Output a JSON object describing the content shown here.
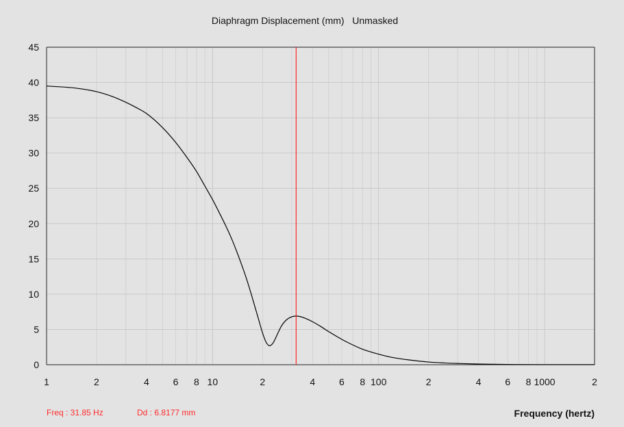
{
  "chart_data": {
    "type": "line",
    "title": "Diaphragm Displacement (mm)   Unmasked",
    "xlabel": "Frequency (hertz)",
    "ylabel": "",
    "x_scale": "log",
    "xlim": [
      1,
      2000
    ],
    "ylim": [
      0,
      45
    ],
    "grid": true,
    "y_ticks": [
      0,
      5,
      10,
      15,
      20,
      25,
      30,
      35,
      40,
      45
    ],
    "x_ticks": [
      {
        "value": 1,
        "label": "1"
      },
      {
        "value": 2,
        "label": "2"
      },
      {
        "value": 4,
        "label": "4"
      },
      {
        "value": 6,
        "label": "6"
      },
      {
        "value": 8,
        "label": "8"
      },
      {
        "value": 10,
        "label": "10"
      },
      {
        "value": 20,
        "label": "2"
      },
      {
        "value": 40,
        "label": "4"
      },
      {
        "value": 60,
        "label": "6"
      },
      {
        "value": 80,
        "label": "8"
      },
      {
        "value": 100,
        "label": "100"
      },
      {
        "value": 200,
        "label": "2"
      },
      {
        "value": 400,
        "label": "4"
      },
      {
        "value": 600,
        "label": "6"
      },
      {
        "value": 800,
        "label": "8"
      },
      {
        "value": 1000,
        "label": "1000"
      },
      {
        "value": 2000,
        "label": "2"
      }
    ],
    "series": [
      {
        "color": "#000000",
        "x": [
          1,
          1.5,
          2,
          2.5,
          3,
          3.5,
          4,
          5,
          6,
          7,
          8,
          9,
          10,
          11,
          12,
          13,
          14,
          15,
          16,
          17,
          18,
          19,
          20,
          21,
          22,
          23,
          24,
          25,
          26,
          28,
          30,
          32,
          34,
          36,
          40,
          45,
          50,
          60,
          70,
          80,
          100,
          120,
          150,
          200,
          250,
          300,
          400,
          500,
          700,
          1000,
          1500,
          2000
        ],
        "y": [
          39.5,
          39.2,
          38.7,
          38.0,
          37.2,
          36.4,
          35.6,
          33.6,
          31.5,
          29.4,
          27.4,
          25.3,
          23.4,
          21.5,
          19.7,
          17.9,
          16.0,
          14.1,
          12.2,
          10.2,
          8.2,
          6.3,
          4.5,
          3.2,
          2.7,
          3.0,
          3.8,
          4.7,
          5.5,
          6.4,
          6.8,
          6.9,
          6.8,
          6.6,
          6.1,
          5.4,
          4.7,
          3.6,
          2.8,
          2.2,
          1.5,
          1.05,
          0.7,
          0.38,
          0.25,
          0.18,
          0.1,
          0.06,
          0.03,
          0.02,
          0.01,
          0.01
        ]
      }
    ],
    "marker": {
      "freq": 31.85,
      "color": "#ff0000"
    }
  },
  "readout": {
    "freq": "Freq : 31.85 Hz",
    "dd": "Dd : 6.8177 mm"
  },
  "colors": {
    "background": "#e3e3e3",
    "grid": "#c8c8c8",
    "grid_minor": "#d2d2d2",
    "curve": "#000000",
    "marker": "#ff0000",
    "readout": "#ff2a2a"
  }
}
